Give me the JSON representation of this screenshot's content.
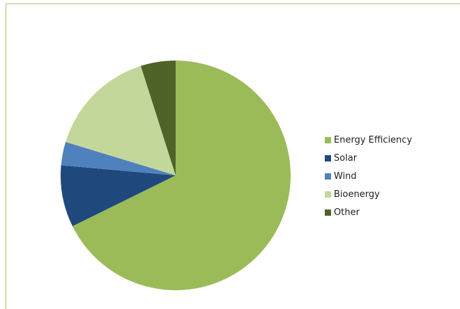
{
  "chart_data": {
    "type": "pie",
    "title": "",
    "categories": [
      "Energy Efficiency",
      "Solar",
      "Wind",
      "Bioenergy",
      "Other"
    ],
    "values": [
      67.7,
      8.7,
      3.3,
      15.4,
      4.9
    ],
    "colors": [
      "#9bbb59",
      "#1f497d",
      "#4f81bd",
      "#c4d79b",
      "#4f6228"
    ],
    "start_angle_deg": 0,
    "direction": "clockwise",
    "legend_position": "right"
  }
}
